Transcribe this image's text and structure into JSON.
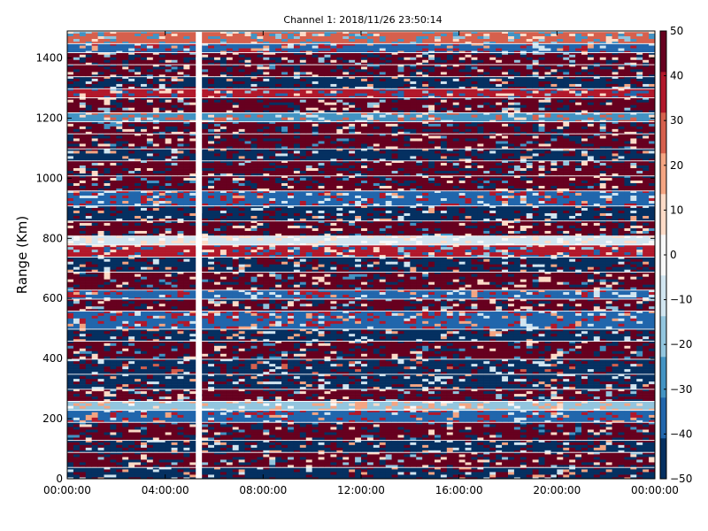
{
  "chart_data": {
    "type": "heatmap",
    "title": "Channel 1: 2018/11/26 23:50:14",
    "xlabel": "",
    "ylabel": "Range (Km)",
    "x_ticks": [
      "00:00:00",
      "04:00:00",
      "08:00:00",
      "12:00:00",
      "16:00:00",
      "20:00:00",
      "00:00:00"
    ],
    "x_range_hours": [
      0,
      24
    ],
    "y_ticks": [
      0,
      200,
      400,
      600,
      800,
      1000,
      1200,
      1400
    ],
    "ylim": [
      0,
      1490
    ],
    "colorbar": {
      "ticks": [
        -50,
        -40,
        -30,
        -20,
        -10,
        0,
        10,
        20,
        30,
        40,
        50
      ],
      "range": [
        -50,
        50
      ],
      "colormap": [
        "#053061",
        "#2166ac",
        "#4393c3",
        "#92c5de",
        "#d1e5f0",
        "#f7f7f7",
        "#fddbc7",
        "#f4a582",
        "#d6604d",
        "#b2182b",
        "#67001f"
      ]
    },
    "data_gap_hours": [
      5.25,
      5.5
    ],
    "gate_bands": [
      {
        "from": 0,
        "to": 40,
        "value": -45
      },
      {
        "from": 40,
        "to": 90,
        "value": 45
      },
      {
        "from": 90,
        "to": 130,
        "value": -45
      },
      {
        "from": 130,
        "to": 190,
        "value": 48
      },
      {
        "from": 190,
        "to": 230,
        "value": -38
      },
      {
        "from": 230,
        "to": 260,
        "value": -15
      },
      {
        "from": 260,
        "to": 300,
        "value": 45
      },
      {
        "from": 300,
        "to": 350,
        "value": -42
      },
      {
        "from": 350,
        "to": 400,
        "value": -48
      },
      {
        "from": 400,
        "to": 460,
        "value": 47
      },
      {
        "from": 460,
        "to": 500,
        "value": -45
      },
      {
        "from": 500,
        "to": 560,
        "value": -35
      },
      {
        "from": 560,
        "to": 600,
        "value": 45
      },
      {
        "from": 600,
        "to": 630,
        "value": -40
      },
      {
        "from": 630,
        "to": 690,
        "value": 48
      },
      {
        "from": 690,
        "to": 740,
        "value": -42
      },
      {
        "from": 740,
        "to": 780,
        "value": 40
      },
      {
        "from": 780,
        "to": 810,
        "value": -5
      },
      {
        "from": 810,
        "to": 860,
        "value": 47
      },
      {
        "from": 860,
        "to": 910,
        "value": -45
      },
      {
        "from": 910,
        "to": 960,
        "value": -40
      },
      {
        "from": 960,
        "to": 1010,
        "value": 48
      },
      {
        "from": 1010,
        "to": 1060,
        "value": 42
      },
      {
        "from": 1060,
        "to": 1100,
        "value": -42
      },
      {
        "from": 1100,
        "to": 1150,
        "value": 46
      },
      {
        "from": 1150,
        "to": 1190,
        "value": 47
      },
      {
        "from": 1190,
        "to": 1220,
        "value": -25
      },
      {
        "from": 1220,
        "to": 1270,
        "value": 45
      },
      {
        "from": 1270,
        "to": 1300,
        "value": 35
      },
      {
        "from": 1300,
        "to": 1340,
        "value": -45
      },
      {
        "from": 1340,
        "to": 1380,
        "value": 46
      },
      {
        "from": 1380,
        "to": 1420,
        "value": 44
      },
      {
        "from": 1420,
        "to": 1450,
        "value": -40
      },
      {
        "from": 1450,
        "to": 1490,
        "value": 30
      }
    ]
  }
}
